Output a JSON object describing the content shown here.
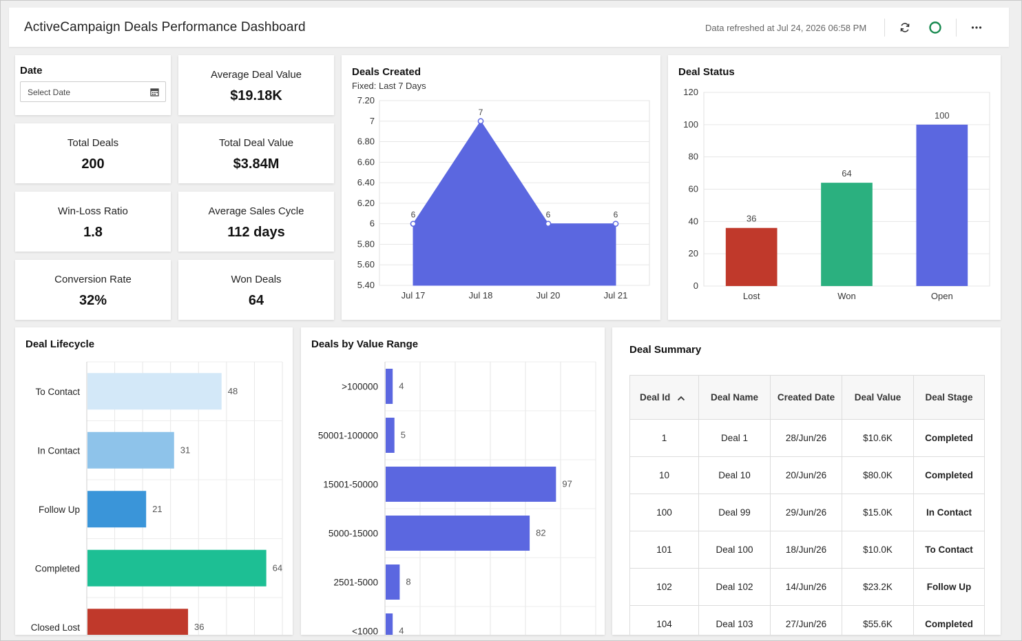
{
  "header": {
    "title": "ActiveCampaign Deals Performance Dashboard",
    "refreshed": "Data refreshed at Jul 24, 2026 06:58 PM"
  },
  "date_filter": {
    "label": "Date",
    "placeholder": "Select Date"
  },
  "kpis": {
    "avg_deal_value": {
      "label": "Average Deal Value",
      "value": "$19.18K"
    },
    "total_deals": {
      "label": "Total Deals",
      "value": "200"
    },
    "total_deal_value": {
      "label": "Total Deal Value",
      "value": "$3.84M"
    },
    "win_loss_ratio": {
      "label": "Win-Loss Ratio",
      "value": "1.8"
    },
    "avg_sales_cycle": {
      "label": "Average Sales Cycle",
      "value": "112 days"
    },
    "conversion_rate": {
      "label": "Conversion Rate",
      "value": "32%"
    },
    "won_deals": {
      "label": "Won Deals",
      "value": "64"
    }
  },
  "table": {
    "title": "Deal Summary",
    "columns": [
      "Deal Id",
      "Deal Name",
      "Created Date",
      "Deal Value",
      "Deal Stage"
    ],
    "rows": [
      [
        "1",
        "Deal 1",
        "28/Jun/26",
        "$10.6K",
        "Completed"
      ],
      [
        "10",
        "Deal 10",
        "20/Jun/26",
        "$80.0K",
        "Completed"
      ],
      [
        "100",
        "Deal 99",
        "29/Jun/26",
        "$15.0K",
        "In Contact"
      ],
      [
        "101",
        "Deal 100",
        "18/Jun/26",
        "$10.0K",
        "To Contact"
      ],
      [
        "102",
        "Deal 102",
        "14/Jun/26",
        "$23.2K",
        "Follow Up"
      ],
      [
        "104",
        "Deal 103",
        "27/Jun/26",
        "$55.6K",
        "Completed"
      ]
    ],
    "stage_colors": {
      "Completed": "#22b58a",
      "In Contact": "#2a63c9",
      "To Contact": "#2a63c9",
      "Follow Up": "#2a63c9"
    }
  },
  "chart_data": [
    {
      "type": "area",
      "title": "Deals Created",
      "subtitle": "Fixed: Last 7 Days",
      "x": [
        "Jul 17",
        "Jul 18",
        "Jul 20",
        "Jul 21"
      ],
      "values": [
        6,
        7,
        6,
        6
      ],
      "ylim": [
        5.4,
        7.2
      ],
      "yticks": [
        "5.40",
        "5.60",
        "5.80",
        "6",
        "6.20",
        "6.40",
        "6.60",
        "6.80",
        "7",
        "7.20"
      ],
      "color": "#5b67e0",
      "grid": true
    },
    {
      "type": "bar",
      "title": "Deal Status",
      "categories": [
        "Lost",
        "Won",
        "Open"
      ],
      "values": [
        36,
        64,
        100
      ],
      "colors": [
        "#c0392b",
        "#2bb07f",
        "#5b67e0"
      ],
      "ylim": [
        0,
        120
      ],
      "yticks": [
        "0",
        "20",
        "40",
        "60",
        "80",
        "100",
        "120"
      ],
      "grid": true
    },
    {
      "type": "bar",
      "orientation": "horizontal",
      "title": "Deal Lifecycle",
      "categories": [
        "To Contact",
        "In Contact",
        "Follow Up",
        "Completed",
        "Closed Lost"
      ],
      "values": [
        48,
        31,
        21,
        64,
        36
      ],
      "colors": [
        "#d3e8f8",
        "#8ec3ea",
        "#3a95d9",
        "#1dbf94",
        "#c0392b"
      ],
      "xlim": [
        0,
        70
      ],
      "grid": true
    },
    {
      "type": "bar",
      "orientation": "horizontal",
      "title": "Deals by Value Range",
      "categories": [
        ">100000",
        "50001-100000",
        "15001-50000",
        "5000-15000",
        "2501-5000",
        "<1000"
      ],
      "values": [
        4,
        5,
        97,
        82,
        8,
        4
      ],
      "color": "#5b67e0",
      "xlim": [
        0,
        120
      ],
      "grid": true
    }
  ]
}
